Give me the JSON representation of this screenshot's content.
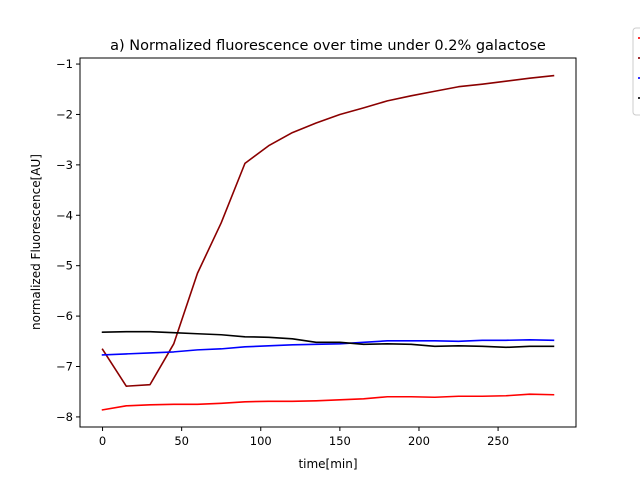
{
  "chart_data": {
    "type": "line",
    "title": "a)  Normalized fluorescence over time under 0.2% galactose",
    "xlabel": "time[min]",
    "ylabel": "normalized Fluorescence[AU]",
    "xlim": [
      -14.25,
      299.25
    ],
    "ylim": [
      -8.2,
      -0.88
    ],
    "xticks": [
      0,
      50,
      100,
      150,
      200,
      250
    ],
    "xtick_labels": [
      "0",
      "50",
      "100",
      "150",
      "200",
      "250"
    ],
    "yticks": [
      -8,
      -7,
      -6,
      -5,
      -4,
      -3,
      -2,
      -1
    ],
    "ytick_labels": [
      "−8",
      "−7",
      "−6",
      "−5",
      "−4",
      "−3",
      "−2",
      "−1"
    ],
    "grid": false,
    "legend_position": "outside-top-right",
    "x": [
      0,
      15,
      30,
      45,
      60,
      75,
      90,
      105,
      120,
      135,
      150,
      165,
      180,
      195,
      210,
      225,
      240,
      255,
      270,
      285
    ],
    "series": [
      {
        "color": "#ff0000",
        "values": [
          -7.86,
          -7.78,
          -7.76,
          -7.75,
          -7.75,
          -7.73,
          -7.7,
          -7.69,
          -7.69,
          -7.68,
          -7.66,
          -7.64,
          -7.6,
          -7.6,
          -7.61,
          -7.59,
          -7.59,
          -7.58,
          -7.55,
          -7.56
        ]
      },
      {
        "color": "#8b0000",
        "values": [
          -6.66,
          -7.39,
          -7.36,
          -6.55,
          -5.15,
          -4.15,
          -2.97,
          -2.62,
          -2.36,
          -2.17,
          -2.0,
          -1.87,
          -1.73,
          -1.63,
          -1.54,
          -1.45,
          -1.4,
          -1.34,
          -1.28,
          -1.23
        ]
      },
      {
        "color": "#0000ff",
        "values": [
          -6.77,
          -6.75,
          -6.73,
          -6.71,
          -6.67,
          -6.65,
          -6.61,
          -6.59,
          -6.57,
          -6.56,
          -6.55,
          -6.52,
          -6.49,
          -6.49,
          -6.49,
          -6.5,
          -6.48,
          -6.48,
          -6.47,
          -6.48
        ]
      },
      {
        "color": "#000000",
        "values": [
          -6.32,
          -6.31,
          -6.31,
          -6.33,
          -6.35,
          -6.37,
          -6.41,
          -6.42,
          -6.45,
          -6.52,
          -6.52,
          -6.56,
          -6.55,
          -6.56,
          -6.6,
          -6.59,
          -6.6,
          -6.62,
          -6.6,
          -6.6
        ]
      }
    ]
  }
}
